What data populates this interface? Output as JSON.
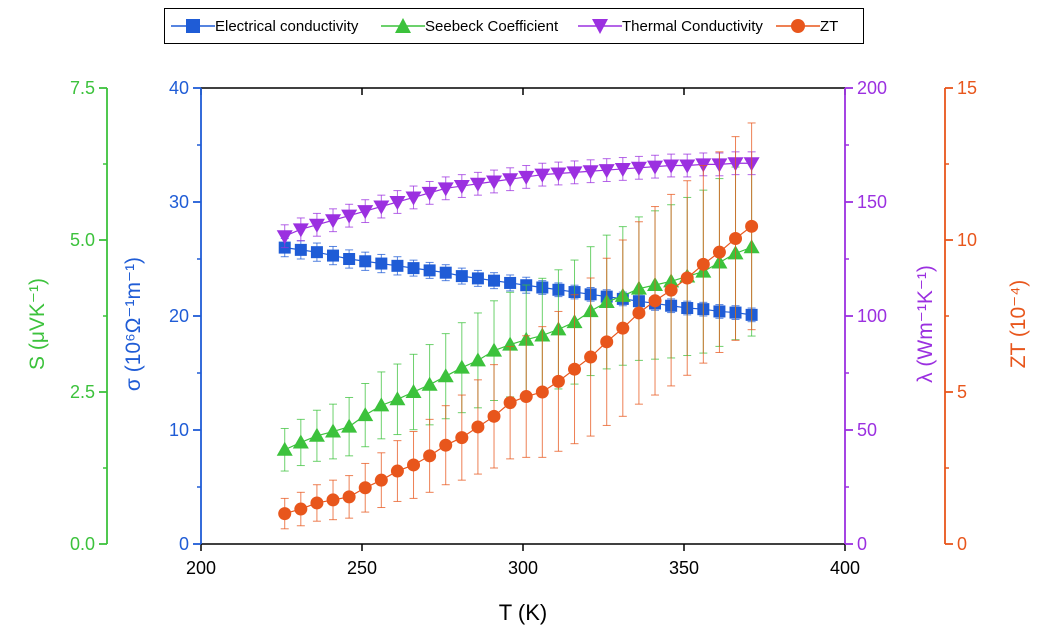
{
  "chart_data": {
    "type": "scatter",
    "xlabel": "T (K)",
    "xlim": [
      200,
      400
    ],
    "xticks": [
      200,
      250,
      300,
      350,
      400
    ],
    "axes": {
      "S": {
        "label": "S (μVK⁻¹)",
        "lim": [
          0,
          7.5
        ],
        "ticks": [
          "0.0",
          "2.5",
          "5.0",
          "7.5"
        ],
        "color": "#3cc23c"
      },
      "sigma": {
        "label": "σ (10⁶Ω⁻¹m⁻¹)",
        "lim": [
          0,
          40
        ],
        "ticks": [
          "0",
          "10",
          "20",
          "30",
          "40"
        ],
        "color": "#1f5cd6"
      },
      "lambda": {
        "label": "λ (Wm⁻¹K⁻¹)",
        "lim": [
          0,
          200
        ],
        "ticks": [
          "0",
          "50",
          "100",
          "150",
          "200"
        ],
        "color": "#9b30e0"
      },
      "ZT": {
        "label": "ZT (10⁻⁴)",
        "lim": [
          0,
          15
        ],
        "ticks": [
          "0",
          "5",
          "10",
          "15"
        ],
        "color": "#e8561c"
      }
    },
    "x": [
      226,
      231,
      236,
      241,
      246,
      251,
      256,
      261,
      266,
      271,
      276,
      281,
      286,
      291,
      296,
      301,
      306,
      311,
      316,
      321,
      326,
      331,
      336,
      341,
      346,
      351,
      356,
      361,
      366,
      371
    ],
    "series": [
      {
        "name": "Electrical conductivity",
        "axis": "sigma",
        "marker": "square",
        "color": "#1f5cd6",
        "values": [
          26.0,
          25.8,
          25.6,
          25.3,
          25.0,
          24.8,
          24.6,
          24.4,
          24.2,
          24.0,
          23.8,
          23.5,
          23.3,
          23.1,
          22.9,
          22.7,
          22.5,
          22.3,
          22.1,
          21.9,
          21.7,
          21.5,
          21.3,
          21.1,
          20.9,
          20.7,
          20.6,
          20.4,
          20.3,
          20.1
        ],
        "errors": [
          0.8,
          0.8,
          0.8,
          0.8,
          0.8,
          0.8,
          0.8,
          0.8,
          0.7,
          0.7,
          0.7,
          0.7,
          0.7,
          0.7,
          0.7,
          0.7,
          0.6,
          0.6,
          0.6,
          0.6,
          0.6,
          0.6,
          0.6,
          0.6,
          0.6,
          0.6,
          0.6,
          0.6,
          0.6,
          0.6
        ]
      },
      {
        "name": "Seebeck Coefficient",
        "axis": "S",
        "marker": "triangle-up",
        "color": "#3cc23c",
        "values": [
          1.55,
          1.67,
          1.78,
          1.85,
          1.93,
          2.12,
          2.28,
          2.38,
          2.5,
          2.62,
          2.76,
          2.9,
          3.02,
          3.18,
          3.28,
          3.36,
          3.43,
          3.53,
          3.65,
          3.83,
          3.98,
          4.08,
          4.2,
          4.26,
          4.32,
          4.4,
          4.48,
          4.63,
          4.78,
          4.88
        ],
        "errors": [
          0.35,
          0.38,
          0.42,
          0.45,
          0.48,
          0.52,
          0.55,
          0.58,
          0.62,
          0.66,
          0.7,
          0.74,
          0.78,
          0.82,
          0.86,
          0.9,
          0.94,
          0.98,
          1.02,
          1.06,
          1.1,
          1.14,
          1.18,
          1.22,
          1.26,
          1.3,
          1.34,
          1.38,
          1.42,
          1.46
        ]
      },
      {
        "name": "Thermal Conductivity",
        "axis": "lambda",
        "marker": "triangle-down",
        "color": "#9b30e0",
        "values": [
          135,
          138,
          140,
          142,
          144,
          146,
          148,
          150,
          152,
          154,
          156,
          157,
          158,
          159,
          160,
          161,
          162,
          162.5,
          163,
          163.5,
          164,
          164.5,
          165,
          165.5,
          166,
          166,
          166.5,
          166.5,
          167,
          167
        ],
        "errors": [
          5,
          5,
          5,
          5,
          5,
          5,
          5,
          5,
          5,
          5,
          5,
          5,
          5,
          5,
          5,
          5,
          5,
          5,
          5,
          5,
          5,
          5,
          5,
          5,
          5,
          5,
          5,
          5,
          5,
          5
        ]
      },
      {
        "name": "ZT",
        "axis": "ZT",
        "marker": "circle",
        "color": "#e8561c",
        "values": [
          1.0,
          1.15,
          1.35,
          1.45,
          1.55,
          1.85,
          2.1,
          2.4,
          2.6,
          2.9,
          3.25,
          3.5,
          3.85,
          4.2,
          4.65,
          4.85,
          5.0,
          5.35,
          5.75,
          6.15,
          6.65,
          7.1,
          7.6,
          8.0,
          8.35,
          8.75,
          9.2,
          9.6,
          10.05,
          10.45
        ],
        "errors": [
          0.5,
          0.55,
          0.6,
          0.65,
          0.7,
          0.8,
          0.9,
          1.0,
          1.1,
          1.2,
          1.3,
          1.4,
          1.55,
          1.7,
          1.85,
          2.0,
          2.15,
          2.3,
          2.45,
          2.6,
          2.75,
          2.9,
          3.0,
          3.1,
          3.15,
          3.2,
          3.25,
          3.3,
          3.35,
          3.4
        ]
      }
    ]
  }
}
